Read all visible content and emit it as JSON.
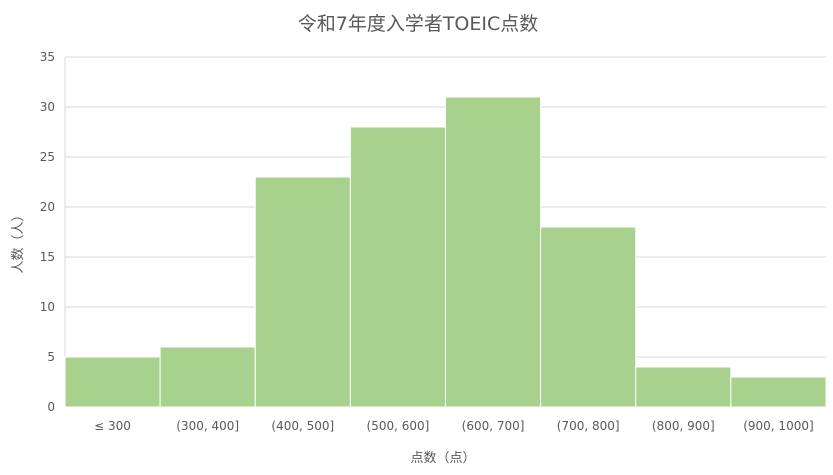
{
  "chart_data": {
    "type": "bar",
    "title": "令和7年度入学者TOEIC点数",
    "xlabel": "点数（点）",
    "ylabel": "人数（人）",
    "categories": [
      "≤ 300",
      "(300, 400]",
      "(400, 500]",
      "(500, 600]",
      "(600, 700]",
      "(700, 800]",
      "(800, 900]",
      "(900, 1000]"
    ],
    "values": [
      5,
      6,
      23,
      28,
      31,
      18,
      4,
      3
    ],
    "ylim": [
      0,
      35
    ],
    "yticks": [
      0,
      5,
      10,
      15,
      20,
      25,
      30,
      35
    ],
    "grid": true,
    "legend": "none",
    "bar_color": "#a9d18e",
    "grid_color": "#d9d9d9"
  }
}
